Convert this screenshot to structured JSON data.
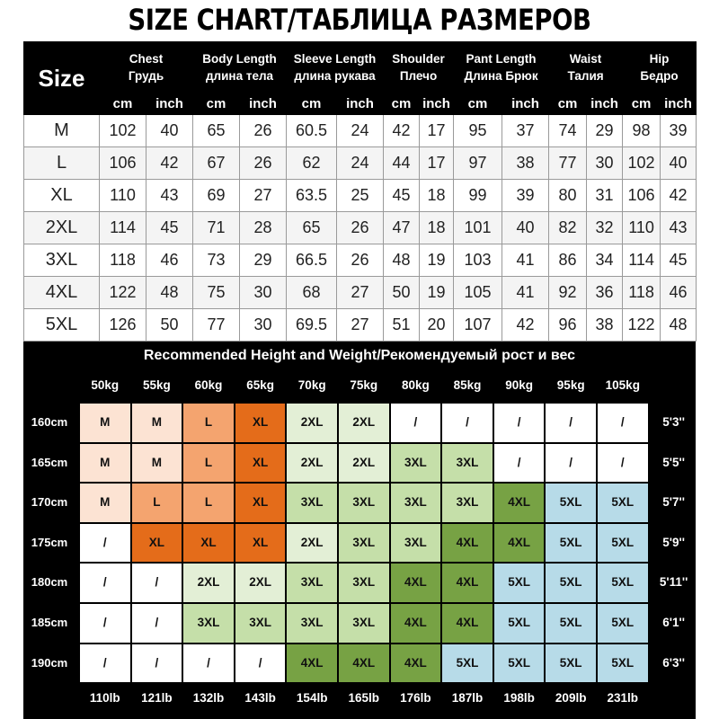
{
  "title": "SIZE CHART/ТАБЛИЦА РАЗМЕРОВ",
  "size_table": {
    "size_label": "Size",
    "measures": [
      {
        "en": "Chest",
        "ru": "Грудь"
      },
      {
        "en": "Body Length",
        "ru": "длина тела"
      },
      {
        "en": "Sleeve Length",
        "ru": "длина рукава"
      },
      {
        "en": "Shoulder",
        "ru": "Плечо"
      },
      {
        "en": "Pant Length",
        "ru": "Длина Брюк"
      },
      {
        "en": "Waist",
        "ru": "Талия"
      },
      {
        "en": "Hip",
        "ru": "Бедро"
      }
    ],
    "unit_cm": "cm",
    "unit_inch": "inch",
    "rows": [
      {
        "size": "M",
        "values": [
          "102",
          "40",
          "65",
          "26",
          "60.5",
          "24",
          "42",
          "17",
          "95",
          "37",
          "74",
          "29",
          "98",
          "39"
        ]
      },
      {
        "size": "L",
        "values": [
          "106",
          "42",
          "67",
          "26",
          "62",
          "24",
          "44",
          "17",
          "97",
          "38",
          "77",
          "30",
          "102",
          "40"
        ]
      },
      {
        "size": "XL",
        "values": [
          "110",
          "43",
          "69",
          "27",
          "63.5",
          "25",
          "45",
          "18",
          "99",
          "39",
          "80",
          "31",
          "106",
          "42"
        ]
      },
      {
        "size": "2XL",
        "values": [
          "114",
          "45",
          "71",
          "28",
          "65",
          "26",
          "47",
          "18",
          "101",
          "40",
          "82",
          "32",
          "110",
          "43"
        ]
      },
      {
        "size": "3XL",
        "values": [
          "118",
          "46",
          "73",
          "29",
          "66.5",
          "26",
          "48",
          "19",
          "103",
          "41",
          "86",
          "34",
          "114",
          "45"
        ]
      },
      {
        "size": "4XL",
        "values": [
          "122",
          "48",
          "75",
          "30",
          "68",
          "27",
          "50",
          "19",
          "105",
          "41",
          "92",
          "36",
          "118",
          "46"
        ]
      },
      {
        "size": "5XL",
        "values": [
          "126",
          "50",
          "77",
          "30",
          "69.5",
          "27",
          "51",
          "20",
          "107",
          "42",
          "96",
          "38",
          "122",
          "48"
        ]
      }
    ]
  },
  "recommend": {
    "title": "Recommended Height and Weight/Рекомендуемый рост и вес",
    "weights_kg": [
      "50kg",
      "55kg",
      "60kg",
      "65kg",
      "70kg",
      "75kg",
      "80kg",
      "85kg",
      "90kg",
      "95kg",
      "105kg"
    ],
    "weights_lb": [
      "110lb",
      "121lb",
      "132lb",
      "143lb",
      "154lb",
      "165lb",
      "176lb",
      "187lb",
      "198lb",
      "209lb",
      "231lb"
    ],
    "heights_cm": [
      "160cm",
      "165cm",
      "170cm",
      "175cm",
      "180cm",
      "185cm",
      "190cm"
    ],
    "heights_ft": [
      "5'3''",
      "5'5''",
      "5'7''",
      "5'9''",
      "5'11''",
      "6'1''",
      "6'3''"
    ],
    "grid": [
      [
        "M",
        "M",
        "L",
        "XL",
        "2XL",
        "2XL",
        "/",
        "/",
        "/",
        "/",
        "/"
      ],
      [
        "M",
        "M",
        "L",
        "XL",
        "2XL",
        "2XL",
        "3XL",
        "3XL",
        "/",
        "/",
        "/"
      ],
      [
        "M",
        "L",
        "L",
        "XL",
        "3XL",
        "3XL",
        "3XL",
        "3XL",
        "4XL",
        "5XL",
        "5XL"
      ],
      [
        "/",
        "XL",
        "XL",
        "XL",
        "2XL",
        "3XL",
        "3XL",
        "4XL",
        "4XL",
        "5XL",
        "5XL"
      ],
      [
        "/",
        "/",
        "2XL",
        "2XL",
        "3XL",
        "3XL",
        "4XL",
        "4XL",
        "5XL",
        "5XL",
        "5XL"
      ],
      [
        "/",
        "/",
        "3XL",
        "3XL",
        "3XL",
        "3XL",
        "4XL",
        "4XL",
        "5XL",
        "5XL",
        "5XL"
      ],
      [
        "/",
        "/",
        "/",
        "/",
        "4XL",
        "4XL",
        "4XL",
        "5XL",
        "5XL",
        "5XL",
        "5XL"
      ]
    ],
    "colors": {
      "M": "#fce3d3",
      "L": "#f4a46f",
      "XL": "#e46c1a",
      "2XL": "#e3efd6",
      "3XL": "#c5dfa9",
      "4XL": "#77a244",
      "5XL": "#b7dbe8",
      "/": "#ffffff"
    }
  }
}
